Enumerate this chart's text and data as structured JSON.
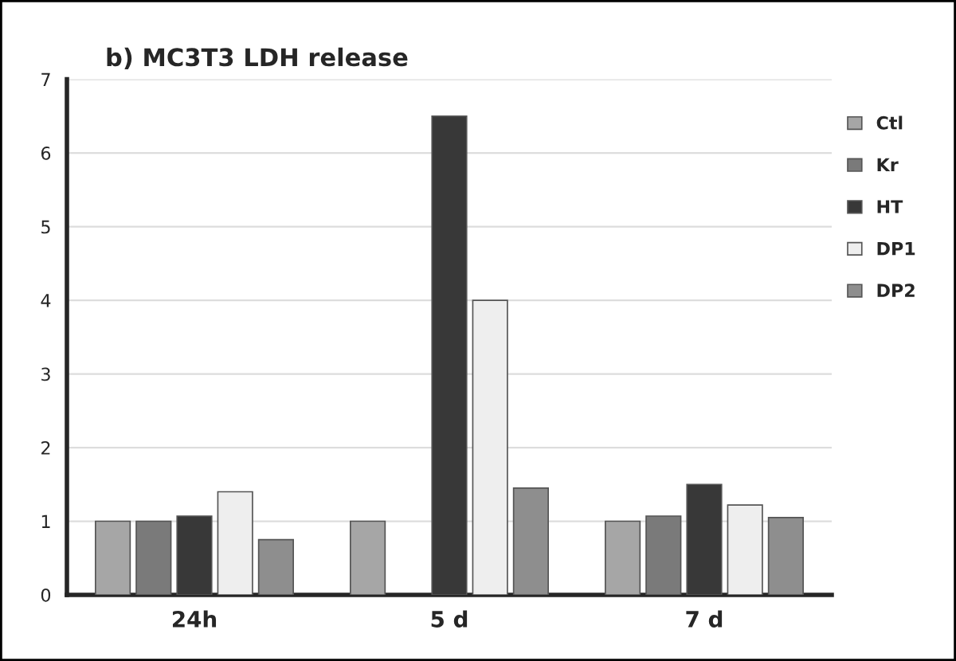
{
  "chart_data": {
    "type": "bar",
    "title": "b) MC3T3 LDH release",
    "categories": [
      "24h",
      "5 d",
      "7 d"
    ],
    "series": [
      {
        "name": "Ctl",
        "color": "#a6a6a6",
        "values": [
          1.0,
          1.0,
          1.0
        ]
      },
      {
        "name": "Kr",
        "color": "#7a7a7a",
        "values": [
          1.0,
          null,
          1.07
        ]
      },
      {
        "name": "HT",
        "color": "#383838",
        "values": [
          1.07,
          6.5,
          1.5
        ]
      },
      {
        "name": "DP1",
        "color": "#eeeeee",
        "values": [
          1.4,
          4.0,
          1.22
        ]
      },
      {
        "name": "DP2",
        "color": "#8e8e8e",
        "values": [
          0.75,
          1.45,
          1.05
        ]
      }
    ],
    "ylim": [
      0,
      7
    ],
    "yticks": [
      0,
      1,
      2,
      3,
      4,
      5,
      6,
      7
    ],
    "grid": "y",
    "legend": "right"
  }
}
